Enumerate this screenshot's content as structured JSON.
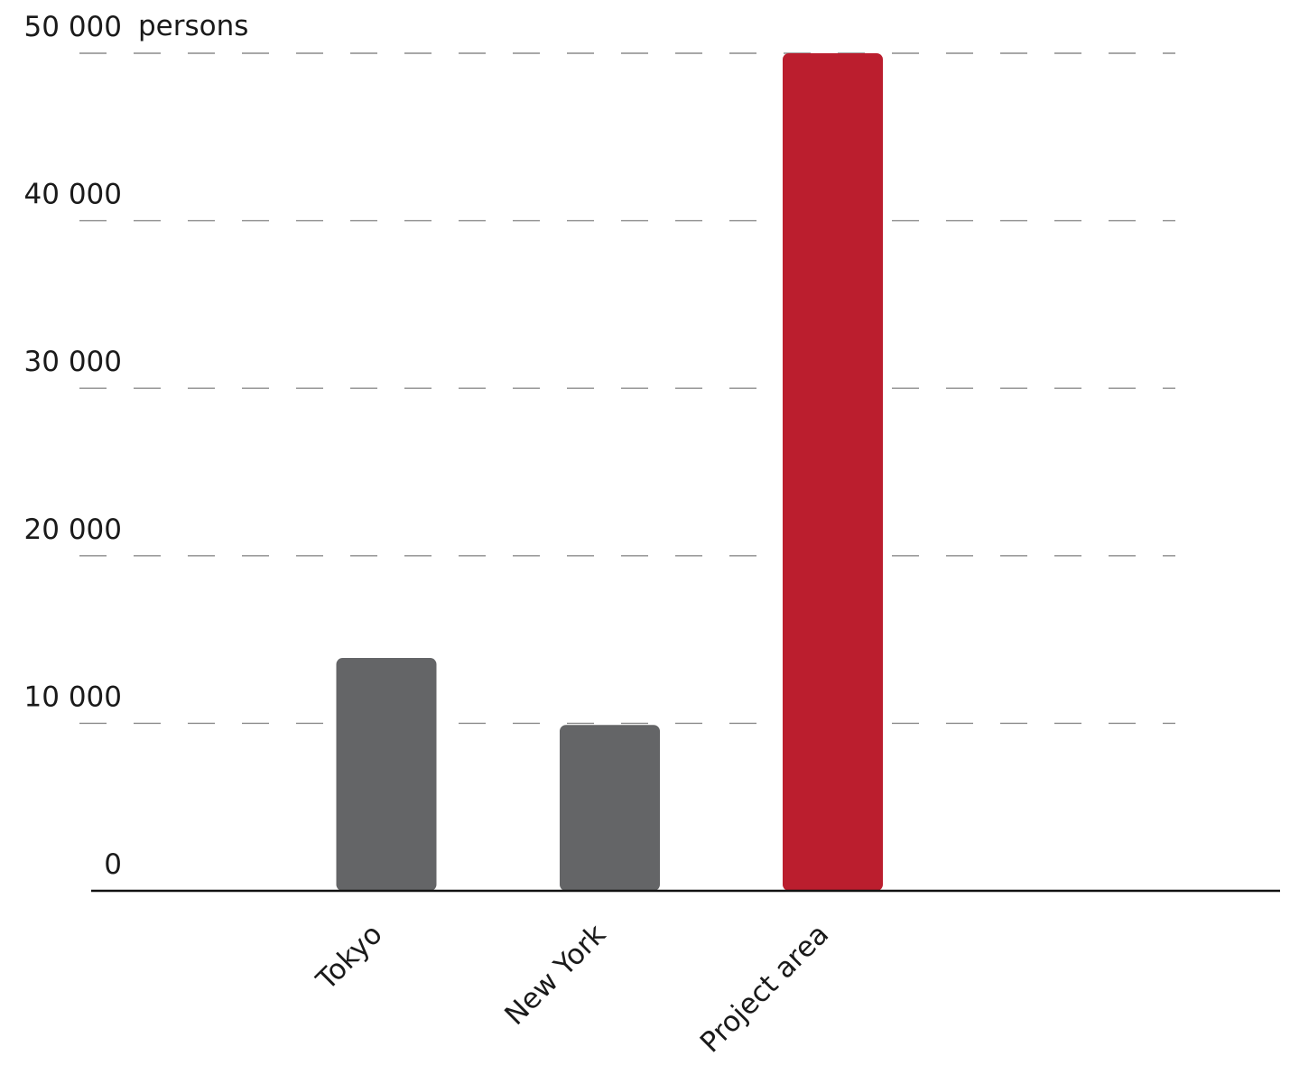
{
  "chart_data": {
    "type": "bar",
    "categories": [
      "Tokyo",
      "New York",
      "Project area"
    ],
    "values": [
      13900,
      9900,
      50000
    ],
    "bar_colors": [
      "#646567",
      "#646567",
      "#bb1e2e"
    ],
    "ylim": [
      0,
      50000
    ],
    "yticks": [
      0,
      10000,
      20000,
      30000,
      40000,
      50000
    ],
    "ytick_labels": [
      "0",
      "10 000",
      "20 000",
      "30 000",
      "40 000",
      "50 000"
    ],
    "y_unit": "persons",
    "grid": "dashed horizontal",
    "title": "",
    "xlabel": "",
    "ylabel": ""
  }
}
